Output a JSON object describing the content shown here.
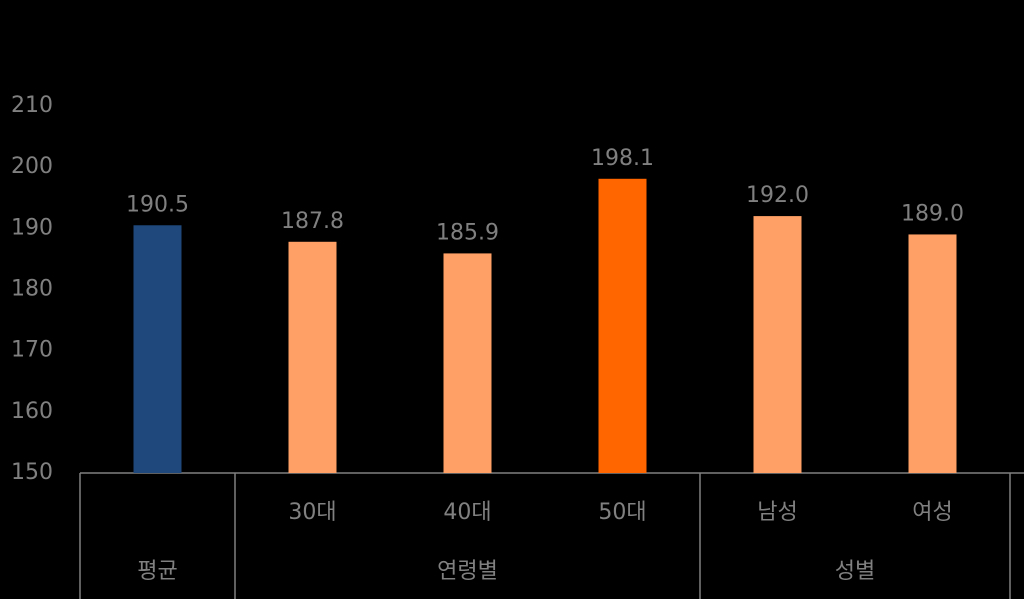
{
  "chart_data": {
    "type": "bar",
    "categories": [
      null,
      "30대",
      "40대",
      "50대",
      "남성",
      "여성"
    ],
    "groups": [
      {
        "label": "평균",
        "count": 1
      },
      {
        "label": "연령별",
        "count": 3
      },
      {
        "label": "성별",
        "count": 2
      }
    ],
    "values": [
      190.5,
      187.8,
      185.9,
      198.1,
      192.0,
      189.0
    ],
    "value_labels": [
      "190.5",
      "187.8",
      "185.9",
      "198.1",
      "192.0",
      "189.0"
    ],
    "colors": [
      "#1f497d",
      "#ffa066",
      "#ffa066",
      "#ff6600",
      "#ffa066",
      "#ffa066"
    ],
    "ylim": [
      150,
      210
    ],
    "yticks": [
      150,
      160,
      170,
      180,
      190,
      200,
      210
    ],
    "grid": false
  }
}
